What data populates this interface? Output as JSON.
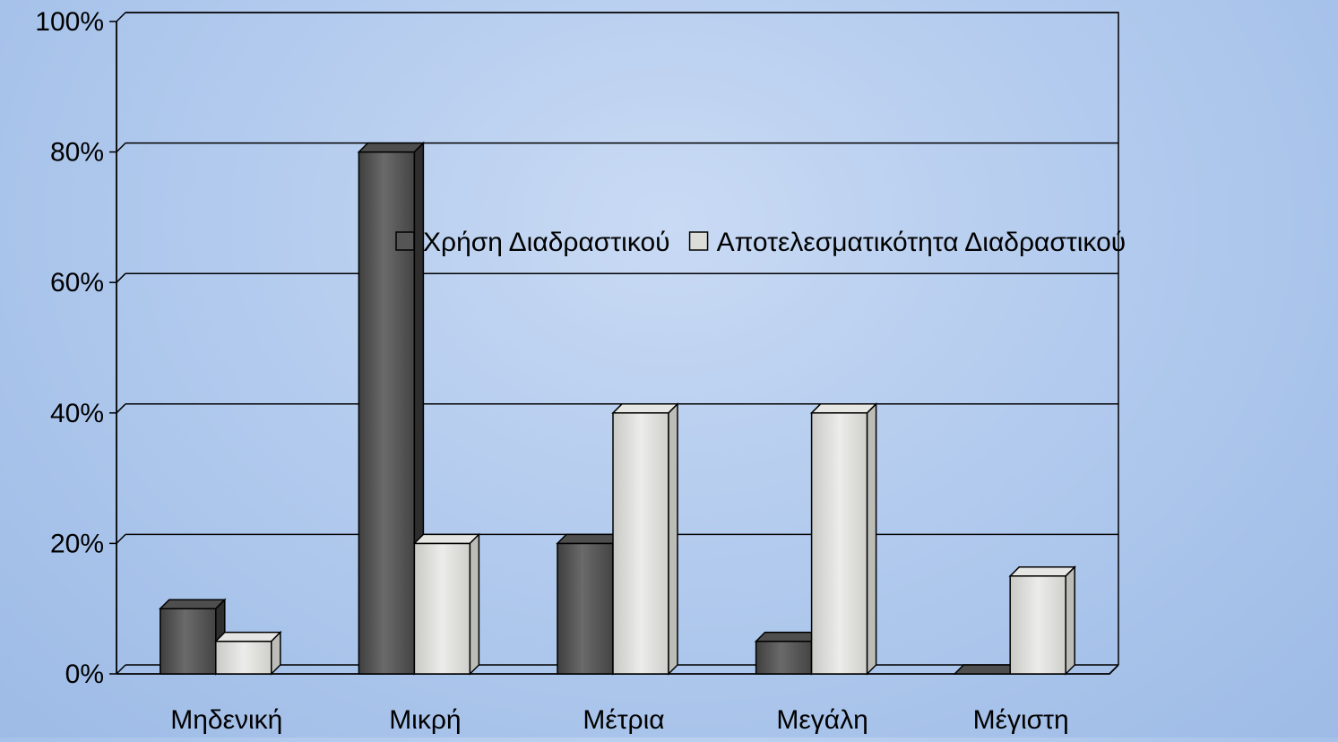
{
  "chart_data": {
    "type": "bar",
    "categories": [
      "Μηδενική",
      "Μικρή",
      "Μέτρια",
      "Μεγάλη",
      "Μέγιστη"
    ],
    "series": [
      {
        "name": "Χρήση Διαδραστικού",
        "values": [
          10,
          80,
          20,
          5,
          0
        ],
        "color": "#5a5a5a"
      },
      {
        "name": "Αποτελεσματικότητα Διαδραστικού",
        "values": [
          5,
          20,
          40,
          40,
          15
        ],
        "color": "#d9d9d6"
      }
    ],
    "yticks": [
      "0%",
      "20%",
      "40%",
      "60%",
      "80%",
      "100%"
    ],
    "ylim": [
      0,
      100
    ],
    "grid": true,
    "legend_position": "top-right",
    "three_d": true
  }
}
